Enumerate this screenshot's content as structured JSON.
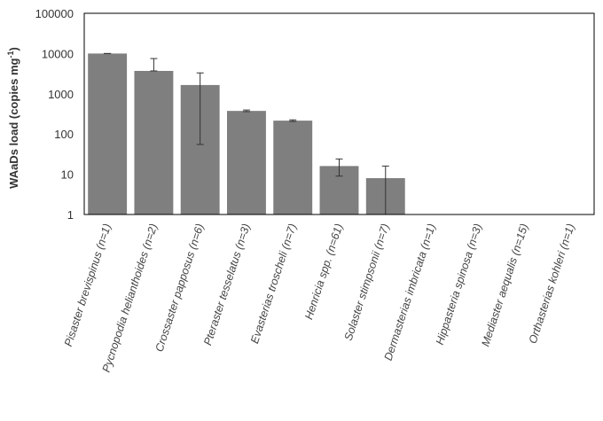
{
  "chart_data": {
    "type": "bar",
    "title": "",
    "xlabel": "",
    "ylabel": "WAaDs  load (copies mg",
    "ylabel_sup": "-1",
    "ylabel_close": ")",
    "yscale": "log",
    "ylim": [
      1,
      100000
    ],
    "yticks": [
      "1",
      "10",
      "100",
      "1000",
      "10000",
      "100000"
    ],
    "grid": false,
    "bar_color": "#7f7f7f",
    "categories": [
      {
        "name": "Pisaster brevispinus ",
        "n": "(n=1)"
      },
      {
        "name": "Pycnopodia helianthoides ",
        "n": "(n=2)"
      },
      {
        "name": "Crossaster papposus ",
        "n": "(n=6)"
      },
      {
        "name": "Pteraster tesselatus ",
        "n": "(n=3)"
      },
      {
        "name": "Evasterias troscheli ",
        "n": "(n=7)"
      },
      {
        "name": "Henricia spp. ",
        "n": "(n=61)"
      },
      {
        "name": "Solaster stimpsonii ",
        "n": "(n=7)"
      },
      {
        "name": "Dermasterias imbricata ",
        "n": "(n=1)"
      },
      {
        "name": "Hippasteria spinosa ",
        "n": "(n=3)"
      },
      {
        "name": "Mediaster aequalis ",
        "n": "(n=15)"
      },
      {
        "name": "Orthasterias kohleri ",
        "n": "(n=1)"
      }
    ],
    "values": [
      10000,
      3700,
      1650,
      375,
      215,
      16,
      8,
      null,
      null,
      null,
      null
    ],
    "error_low": [
      10000,
      3700,
      55,
      360,
      205,
      9,
      1,
      null,
      null,
      null,
      null
    ],
    "error_high": [
      10000,
      7500,
      3300,
      395,
      225,
      24,
      16,
      null,
      null,
      null,
      null
    ]
  }
}
